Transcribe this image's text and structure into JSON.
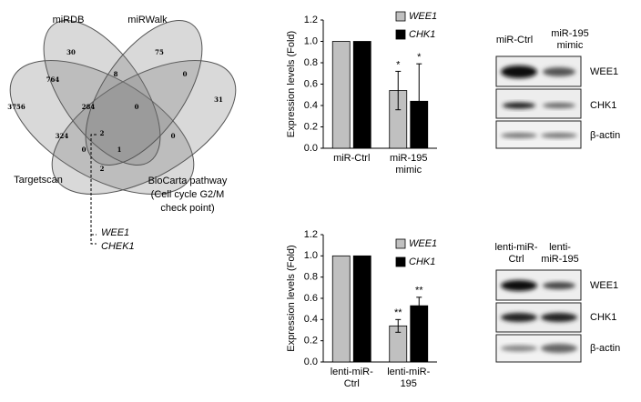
{
  "chart_data": [
    {
      "type": "bar",
      "y_label": "Expression levels (Fold)",
      "categories": [
        "miR-Ctrl",
        "miR-195 mimic"
      ],
      "series": [
        {
          "name": "WEE1",
          "color": "#c0c0c0",
          "values": [
            1.0,
            0.54
          ],
          "errors": [
            null,
            0.18
          ],
          "significance": [
            null,
            "*"
          ]
        },
        {
          "name": "CHK1",
          "color": "#000000",
          "values": [
            1.0,
            0.44
          ],
          "errors": [
            null,
            0.35
          ],
          "significance": [
            null,
            "*"
          ]
        }
      ],
      "ylim": [
        0,
        1.2
      ],
      "yticks": [
        {
          "value": 0,
          "label": "0.0"
        },
        0.2,
        0.4,
        0.6,
        0.8,
        {
          "value": 1,
          "label": "1.0"
        },
        1.2
      ]
    },
    {
      "type": "bar",
      "y_label": "Expression levels (Fold)",
      "categories": [
        "lenti-miR-Ctrl",
        "lenti-miR-195"
      ],
      "series": [
        {
          "name": "WEE1",
          "color": "#c0c0c0",
          "values": [
            1.0,
            0.34
          ],
          "errors": [
            null,
            0.06
          ],
          "significance": [
            null,
            "**"
          ]
        },
        {
          "name": "CHK1",
          "color": "#000000",
          "values": [
            1.0,
            0.53
          ],
          "errors": [
            null,
            0.08
          ],
          "significance": [
            null,
            "**"
          ]
        }
      ],
      "ylim": [
        0,
        1.2
      ],
      "yticks": [
        {
          "value": 0,
          "label": "0.0"
        },
        0.2,
        0.4,
        0.6,
        0.8,
        {
          "value": 1,
          "label": "1.0"
        },
        1.2
      ]
    }
  ],
  "venn": {
    "sets": [
      "miRDB",
      "miRWalk",
      "Targetscan"
    ],
    "pathway_label": [
      "BioCarta pathway",
      "(Cell cycle G2/M",
      "check point)"
    ],
    "regions": [
      30,
      75,
      8,
      0,
      764,
      31,
      3756,
      284,
      0,
      0,
      324,
      2,
      0,
      1,
      2
    ],
    "genes": [
      "WEE1",
      "CHEK1"
    ]
  },
  "blots": [
    {
      "lanes": [
        "miR-Ctrl",
        "miR-195 mimic"
      ],
      "proteins": [
        "WEE1",
        "CHK1",
        "β-actin"
      ]
    },
    {
      "lanes": [
        "lenti-miR-Ctrl",
        "lenti-miR-195"
      ],
      "proteins": [
        "WEE1",
        "CHK1",
        "β-actin"
      ]
    }
  ]
}
